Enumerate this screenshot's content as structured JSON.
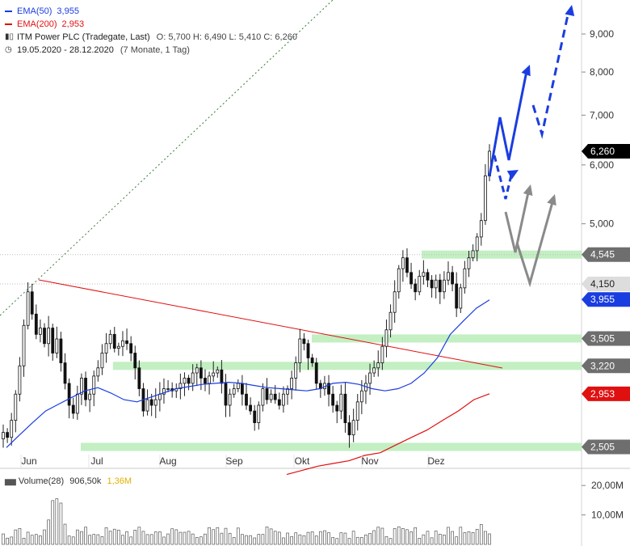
{
  "legend": {
    "ema50_label": "EMA(50)",
    "ema50_value": "3,955",
    "ema200_label": "EMA(200)",
    "ema200_value": "2,953",
    "instrument": "ITM Power PLC (Tradegate, Last)",
    "ohlc": "O: 5,700  H: 6,490  L: 5,410  C: 6,260",
    "period": "19.05.2020 - 28.12.2020",
    "period_note": "(7 Monate, 1 Tag)",
    "colors": {
      "ema50": "#1a3de0",
      "ema200": "#e01010"
    }
  },
  "volume_legend": {
    "label": "Volume(28)",
    "value": "906,50k",
    "max": "1,36M"
  },
  "chart_data": {
    "type": "candlestick",
    "x_ticks": [
      "Jun",
      "Jul",
      "Aug",
      "Sep",
      "Okt",
      "Nov",
      "Dez"
    ],
    "y_scale": "log",
    "y_ticks": [
      {
        "value": 5,
        "label": "5,000"
      },
      {
        "value": 6,
        "label": "6,000"
      },
      {
        "value": 7,
        "label": "7,000"
      },
      {
        "value": 8,
        "label": "8,000"
      },
      {
        "value": 9,
        "label": "9,000"
      }
    ],
    "ylim": [
      2.35,
      10.0
    ],
    "price_tags": [
      {
        "value": 6.26,
        "label": "6,260",
        "color": "#000000"
      },
      {
        "value": 4.545,
        "label": "4,545",
        "color": "#6e6e6e"
      },
      {
        "value": 4.15,
        "label": "4,150",
        "color": "#dddddd"
      },
      {
        "value": 3.955,
        "label": "3,955",
        "color": "#1a3de0"
      },
      {
        "value": 3.505,
        "label": "3,505",
        "color": "#6e6e6e"
      },
      {
        "value": 3.22,
        "label": "3,220",
        "color": "#6e6e6e"
      },
      {
        "value": 2.953,
        "label": "2,953",
        "color": "#e01010"
      },
      {
        "value": 2.505,
        "label": "2,505",
        "color": "#6e6e6e"
      }
    ],
    "support_zones": [
      4.545,
      3.505,
      3.22,
      2.505
    ],
    "series": {
      "close": [
        2.62,
        2.58,
        2.72,
        2.95,
        3.22,
        3.65,
        4.05,
        3.78,
        3.55,
        3.62,
        3.45,
        3.62,
        3.35,
        3.5,
        3.25,
        3.05,
        2.85,
        2.78,
        2.95,
        3.1,
        2.9,
        2.95,
        3.12,
        3.2,
        3.35,
        3.45,
        3.55,
        3.4,
        3.42,
        3.48,
        3.45,
        3.35,
        3.2,
        3.0,
        2.8,
        2.9,
        2.85,
        2.9,
        2.95,
        3.0,
        3.0,
        2.98,
        3.0,
        3.05,
        3.1,
        3.05,
        3.15,
        3.2,
        3.1,
        3.05,
        3.12,
        3.15,
        3.18,
        3.05,
        2.85,
        2.95,
        3.0,
        3.05,
        2.95,
        2.85,
        2.8,
        2.7,
        2.85,
        3.0,
        2.9,
        2.95,
        2.9,
        2.85,
        2.95,
        3.0,
        3.1,
        3.25,
        3.5,
        3.45,
        3.3,
        3.25,
        3.05,
        3.0,
        3.05,
        2.95,
        2.85,
        2.8,
        2.95,
        2.7,
        2.6,
        2.72,
        2.88,
        2.98,
        3.05,
        3.15,
        3.2,
        3.25,
        3.42,
        3.6,
        3.8,
        4.05,
        4.35,
        4.5,
        4.3,
        4.15,
        4.05,
        4.25,
        4.3,
        4.2,
        4.1,
        4.2,
        4.05,
        4.2,
        4.3,
        4.15,
        3.85,
        4.1,
        4.35,
        4.5,
        4.6,
        4.8,
        5.05,
        5.8,
        6.26
      ],
      "ema50": [
        2.5,
        2.6,
        2.7,
        2.8,
        2.86,
        2.92,
        2.98,
        3.01,
        2.96,
        2.9,
        2.88,
        2.92,
        2.96,
        3.0,
        3.02,
        3.04,
        3.05,
        3.06,
        3.05,
        3.03,
        3.01,
        3.0,
        2.99,
        2.98,
        3.0,
        3.05,
        3.06,
        3.04,
        3.0,
        2.98,
        3.0,
        3.05,
        3.15,
        3.3,
        3.55,
        3.7,
        3.85,
        3.95
      ],
      "ema200": [
        2.3,
        2.33,
        2.36,
        2.38,
        2.4,
        2.44,
        2.46,
        2.52,
        2.58,
        2.64,
        2.72,
        2.8,
        2.9,
        2.953
      ]
    },
    "trendlines": [
      "resistance from June high",
      "dotted long-term uptrend"
    ],
    "scenario_arrows": [
      "blue bullish path",
      "blue dashed path",
      "grey corrections"
    ]
  },
  "volume_chart": {
    "y_ticks": [
      {
        "value": 10,
        "label": "10,00M"
      },
      {
        "value": 20,
        "label": "20,00M"
      }
    ]
  }
}
